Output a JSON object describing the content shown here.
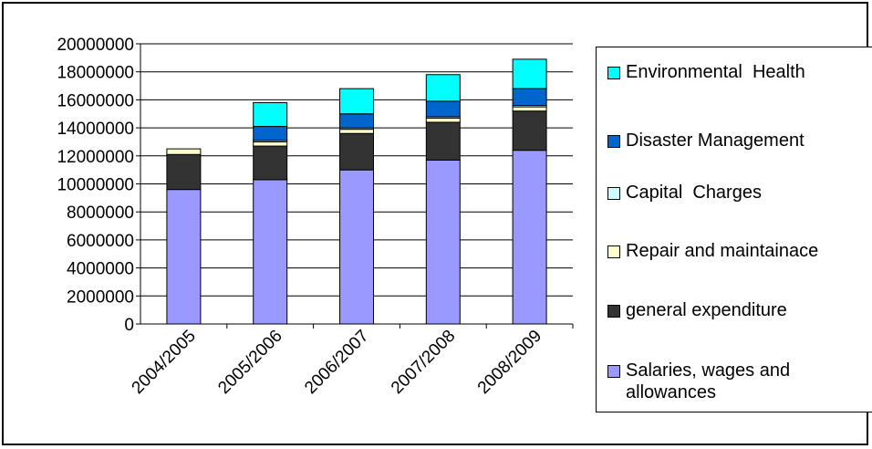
{
  "chart_data": {
    "type": "bar",
    "stacked": true,
    "title": "",
    "xlabel": "",
    "ylabel": "",
    "ylim": [
      0,
      20000000
    ],
    "yticks": [
      0,
      2000000,
      4000000,
      6000000,
      8000000,
      10000000,
      12000000,
      14000000,
      16000000,
      18000000,
      20000000
    ],
    "grid": "horizontal",
    "legend_position": "right",
    "categories": [
      "2004/2005",
      "2005/2006",
      "2006/2007",
      "2007/2008",
      "2008/2009"
    ],
    "series": [
      {
        "name": "Salaries, wages and allowances",
        "color": "#9999FF",
        "values": [
          9600000,
          10300000,
          11000000,
          11700000,
          12400000
        ]
      },
      {
        "name": "general expenditure",
        "color": "#333333",
        "values": [
          2500000,
          2400000,
          2600000,
          2700000,
          2800000
        ]
      },
      {
        "name": "Repair and maintainace",
        "color": "#FFFFCC",
        "values": [
          400000,
          300000,
          300000,
          300000,
          300000
        ]
      },
      {
        "name": "Capital  Charges",
        "color": "#CCFFFF",
        "values": [
          0,
          100000,
          100000,
          100000,
          100000
        ]
      },
      {
        "name": "Disaster Management",
        "color": "#0066CC",
        "values": [
          0,
          1000000,
          1000000,
          1100000,
          1200000
        ]
      },
      {
        "name": "Environmental  Health",
        "color": "#00FFFF",
        "values": [
          0,
          1700000,
          1800000,
          1900000,
          2100000
        ]
      }
    ]
  }
}
